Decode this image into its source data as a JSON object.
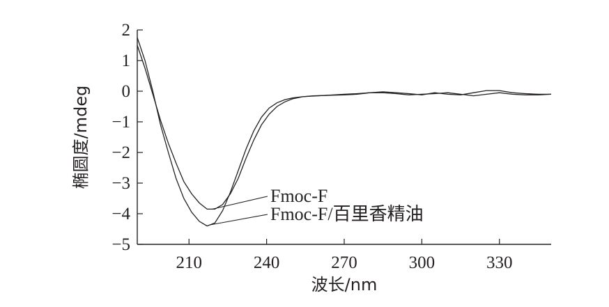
{
  "chart_data": {
    "type": "line",
    "xlabel": "波长/nm",
    "ylabel": "椭圆度/mdeg",
    "xlim": [
      190,
      350
    ],
    "ylim": [
      -5,
      2
    ],
    "xticks": [
      210,
      240,
      270,
      300,
      330
    ],
    "yticks": [
      2,
      1,
      0,
      -1,
      -2,
      -3,
      -4,
      -5
    ],
    "ytick_labels": [
      "2",
      "1",
      "0",
      "−1",
      "−2",
      "−3",
      "−4",
      "−5"
    ],
    "series": [
      {
        "name": "Fmoc-F",
        "color": "#231f20",
        "x": [
          190,
          193,
          196,
          199,
          202,
          205,
          208,
          211,
          214,
          217,
          220,
          223,
          226,
          229,
          232,
          235,
          238,
          241,
          244,
          247,
          250,
          254,
          258,
          262,
          266,
          270,
          275,
          280,
          285,
          290,
          295,
          300,
          305,
          310,
          315,
          320,
          325,
          330,
          335,
          340,
          345,
          350
        ],
        "y": [
          1.5,
          0.75,
          -0.1,
          -0.95,
          -1.7,
          -2.35,
          -2.95,
          -3.35,
          -3.65,
          -3.85,
          -3.85,
          -3.7,
          -3.35,
          -2.85,
          -2.2,
          -1.6,
          -1.1,
          -0.75,
          -0.5,
          -0.35,
          -0.25,
          -0.18,
          -0.15,
          -0.14,
          -0.13,
          -0.12,
          -0.1,
          -0.05,
          -0.02,
          -0.05,
          -0.08,
          -0.12,
          -0.05,
          -0.1,
          -0.12,
          -0.05,
          0.02,
          0.02,
          -0.05,
          -0.08,
          -0.1,
          -0.1
        ]
      },
      {
        "name": "Fmoc-F/百里香精油",
        "color": "#231f20",
        "x": [
          190,
          193,
          196,
          199,
          202,
          205,
          208,
          211,
          214,
          217,
          220,
          223,
          226,
          229,
          232,
          235,
          238,
          241,
          244,
          247,
          250,
          254,
          258,
          262,
          266,
          270,
          275,
          280,
          285,
          290,
          295,
          300,
          305,
          310,
          315,
          320,
          325,
          330,
          335,
          340,
          345,
          350
        ],
        "y": [
          1.75,
          1.0,
          0.0,
          -1.1,
          -2.0,
          -2.85,
          -3.5,
          -3.95,
          -4.25,
          -4.4,
          -4.3,
          -3.9,
          -3.3,
          -2.6,
          -1.9,
          -1.3,
          -0.85,
          -0.55,
          -0.38,
          -0.28,
          -0.22,
          -0.18,
          -0.16,
          -0.14,
          -0.12,
          -0.1,
          -0.08,
          -0.05,
          -0.05,
          -0.08,
          -0.12,
          -0.1,
          -0.08,
          -0.05,
          -0.1,
          -0.15,
          -0.1,
          -0.05,
          -0.1,
          -0.12,
          -0.12,
          -0.1
        ]
      }
    ],
    "annotations": [
      {
        "text": "Fmoc-F",
        "points_to_series": 0,
        "at_x": 219
      },
      {
        "text": "Fmoc-F/百里香精油",
        "points_to_series": 1,
        "at_x": 218
      }
    ],
    "grid": false,
    "legend": "annotations"
  }
}
